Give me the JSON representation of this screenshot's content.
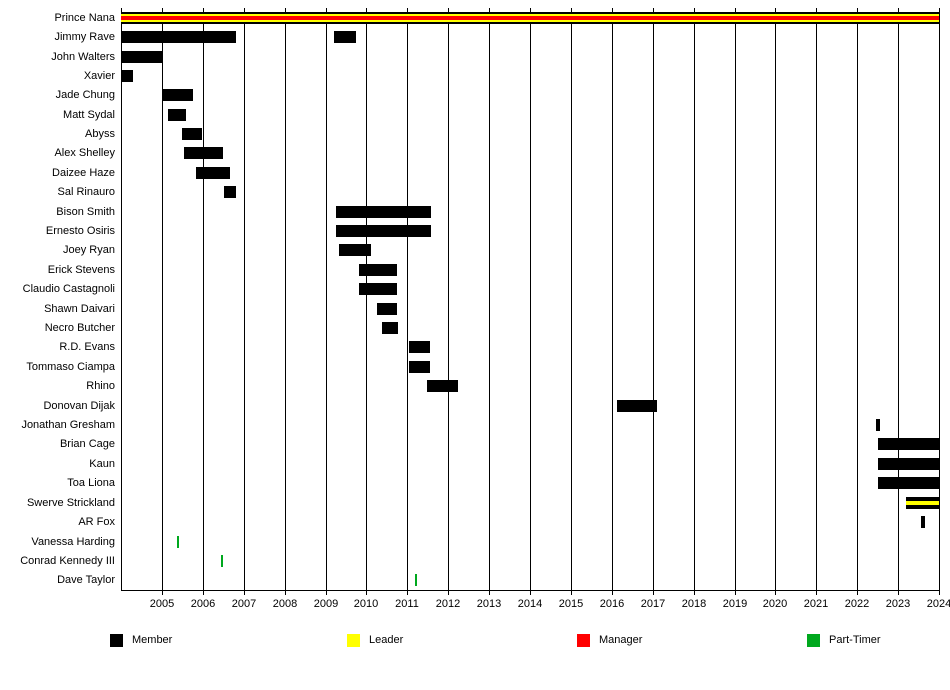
{
  "chart_data": {
    "type": "bar",
    "subtype": "gantt-timeline",
    "title": "",
    "xlabel": "",
    "ylabel": "",
    "xlim": [
      2004,
      2024
    ],
    "xticks": [
      2005,
      2006,
      2007,
      2008,
      2009,
      2010,
      2011,
      2012,
      2013,
      2014,
      2015,
      2016,
      2017,
      2018,
      2019,
      2020,
      2021,
      2022,
      2023,
      2024
    ],
    "grid": true,
    "legend_position": "bottom",
    "role_colors": {
      "member": "#000000",
      "leader": "#ffff00",
      "manager": "#ff0000",
      "part_timer": "#00a81e"
    },
    "legend": [
      {
        "label": "Member",
        "role": "member",
        "color": "#000000"
      },
      {
        "label": "Leader",
        "role": "leader",
        "color": "#ffff00"
      },
      {
        "label": "Manager",
        "role": "manager",
        "color": "#ff0000"
      },
      {
        "label": "Part-Timer",
        "role": "part_timer",
        "color": "#00a81e"
      }
    ],
    "rows": [
      {
        "name": "Prince Nana",
        "segments": [
          {
            "start": 2004.0,
            "end": 2024.0,
            "role": "member-leader-manager"
          }
        ]
      },
      {
        "name": "Jimmy Rave",
        "segments": [
          {
            "start": 2004.0,
            "end": 2006.8,
            "role": "member"
          },
          {
            "start": 2009.2,
            "end": 2009.75,
            "role": "member"
          }
        ]
      },
      {
        "name": "John Walters",
        "segments": [
          {
            "start": 2004.0,
            "end": 2005.0,
            "role": "member"
          }
        ]
      },
      {
        "name": "Xavier",
        "segments": [
          {
            "start": 2004.0,
            "end": 2004.3,
            "role": "member"
          }
        ]
      },
      {
        "name": "Jade Chung",
        "segments": [
          {
            "start": 2005.0,
            "end": 2005.77,
            "role": "member"
          }
        ]
      },
      {
        "name": "Matt Sydal",
        "segments": [
          {
            "start": 2005.15,
            "end": 2005.6,
            "role": "member"
          }
        ]
      },
      {
        "name": "Abyss",
        "segments": [
          {
            "start": 2005.5,
            "end": 2006.0,
            "role": "member"
          }
        ]
      },
      {
        "name": "Alex Shelley",
        "segments": [
          {
            "start": 2005.53,
            "end": 2006.48,
            "role": "member"
          }
        ]
      },
      {
        "name": "Daizee Haze",
        "segments": [
          {
            "start": 2005.83,
            "end": 2006.67,
            "role": "member"
          }
        ]
      },
      {
        "name": "Sal Rinauro",
        "segments": [
          {
            "start": 2006.52,
            "end": 2006.82,
            "role": "member"
          }
        ]
      },
      {
        "name": "Bison Smith",
        "segments": [
          {
            "start": 2009.25,
            "end": 2011.57,
            "role": "member"
          }
        ]
      },
      {
        "name": "Ernesto Osiris",
        "segments": [
          {
            "start": 2009.25,
            "end": 2011.57,
            "role": "member"
          }
        ]
      },
      {
        "name": "Joey Ryan",
        "segments": [
          {
            "start": 2009.32,
            "end": 2010.1,
            "role": "member"
          }
        ]
      },
      {
        "name": "Erick Stevens",
        "segments": [
          {
            "start": 2009.83,
            "end": 2010.75,
            "role": "member"
          }
        ]
      },
      {
        "name": "Claudio Castagnoli",
        "segments": [
          {
            "start": 2009.83,
            "end": 2010.75,
            "role": "member"
          }
        ]
      },
      {
        "name": "Shawn Daivari",
        "segments": [
          {
            "start": 2010.26,
            "end": 2010.75,
            "role": "member"
          }
        ]
      },
      {
        "name": "Necro Butcher",
        "segments": [
          {
            "start": 2010.37,
            "end": 2010.75,
            "role": "member"
          }
        ]
      },
      {
        "name": "R.D. Evans",
        "segments": [
          {
            "start": 2011.03,
            "end": 2011.55,
            "role": "member"
          }
        ]
      },
      {
        "name": "Tommaso Ciampa",
        "segments": [
          {
            "start": 2011.03,
            "end": 2011.55,
            "role": "member"
          }
        ]
      },
      {
        "name": "Rhino",
        "segments": [
          {
            "start": 2011.47,
            "end": 2012.23,
            "role": "member"
          }
        ]
      },
      {
        "name": "Donovan Dijak",
        "segments": [
          {
            "start": 2016.12,
            "end": 2017.1,
            "role": "member"
          }
        ]
      },
      {
        "name": "Jonathan Gresham",
        "segments": [
          {
            "start": 2022.45,
            "end": 2022.55,
            "role": "member"
          }
        ]
      },
      {
        "name": "Brian Cage",
        "segments": [
          {
            "start": 2022.5,
            "end": 2024.0,
            "role": "member"
          }
        ]
      },
      {
        "name": "Kaun",
        "segments": [
          {
            "start": 2022.5,
            "end": 2024.0,
            "role": "member"
          }
        ]
      },
      {
        "name": "Toa Liona",
        "segments": [
          {
            "start": 2022.5,
            "end": 2024.0,
            "role": "member"
          }
        ]
      },
      {
        "name": "Swerve Strickland",
        "segments": [
          {
            "start": 2023.2,
            "end": 2024.0,
            "role": "member-leader"
          }
        ]
      },
      {
        "name": "AR Fox",
        "segments": [
          {
            "start": 2023.55,
            "end": 2023.65,
            "role": "member"
          }
        ]
      },
      {
        "name": "Vanessa Harding",
        "segments": [
          {
            "start": 2005.36,
            "end": 2005.41,
            "role": "part-timer"
          }
        ]
      },
      {
        "name": "Conrad Kennedy III",
        "segments": [
          {
            "start": 2006.45,
            "end": 2006.5,
            "role": "part-timer"
          }
        ]
      },
      {
        "name": "Dave Taylor",
        "segments": [
          {
            "start": 2011.2,
            "end": 2011.25,
            "role": "part-timer"
          }
        ]
      }
    ]
  }
}
